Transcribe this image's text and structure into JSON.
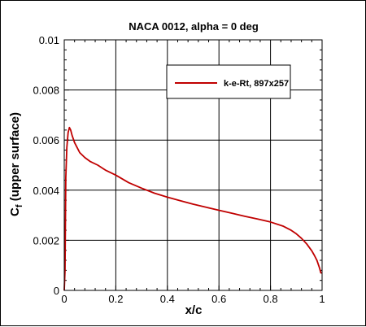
{
  "chart_data": {
    "type": "line",
    "title": "NACA 0012, alpha = 0 deg",
    "xlabel": "x/c",
    "ylabel_main": "C",
    "ylabel_sub": "f",
    "ylabel_rest": " (upper surface)",
    "xlim": [
      0,
      1
    ],
    "ylim": [
      0,
      0.01
    ],
    "x_ticks": [
      0,
      0.2,
      0.4,
      0.6,
      0.8,
      1
    ],
    "x_tick_labels": [
      "0",
      "0.2",
      "0.4",
      "0.6",
      "0.8",
      "1"
    ],
    "y_ticks": [
      0,
      0.002,
      0.004,
      0.006,
      0.008,
      0.01
    ],
    "y_tick_labels": [
      "0",
      "0.002",
      "0.004",
      "0.006",
      "0.008",
      "0.01"
    ],
    "grid": true,
    "legend_position": "top-right",
    "series": [
      {
        "name": "k-e-Rt, 897x257",
        "color": "#c00000",
        "x": [
          0.0,
          0.003,
          0.006,
          0.01,
          0.015,
          0.02,
          0.025,
          0.03,
          0.04,
          0.05,
          0.06,
          0.08,
          0.1,
          0.13,
          0.16,
          0.2,
          0.25,
          0.3,
          0.35,
          0.4,
          0.45,
          0.5,
          0.55,
          0.6,
          0.65,
          0.7,
          0.75,
          0.8,
          0.85,
          0.88,
          0.9,
          0.92,
          0.94,
          0.96,
          0.97,
          0.98,
          0.99,
          0.995,
          1.0
        ],
        "y": [
          0.0,
          0.0008,
          0.0045,
          0.0057,
          0.0063,
          0.0065,
          0.0064,
          0.0062,
          0.0059,
          0.0057,
          0.0055,
          0.0053,
          0.00515,
          0.005,
          0.0048,
          0.0046,
          0.0043,
          0.00408,
          0.00388,
          0.00372,
          0.00358,
          0.00344,
          0.00332,
          0.0032,
          0.00308,
          0.00296,
          0.00285,
          0.00273,
          0.00256,
          0.0024,
          0.00226,
          0.00208,
          0.00186,
          0.00158,
          0.0014,
          0.0012,
          0.0009,
          0.0007,
          0.0007
        ]
      }
    ]
  }
}
